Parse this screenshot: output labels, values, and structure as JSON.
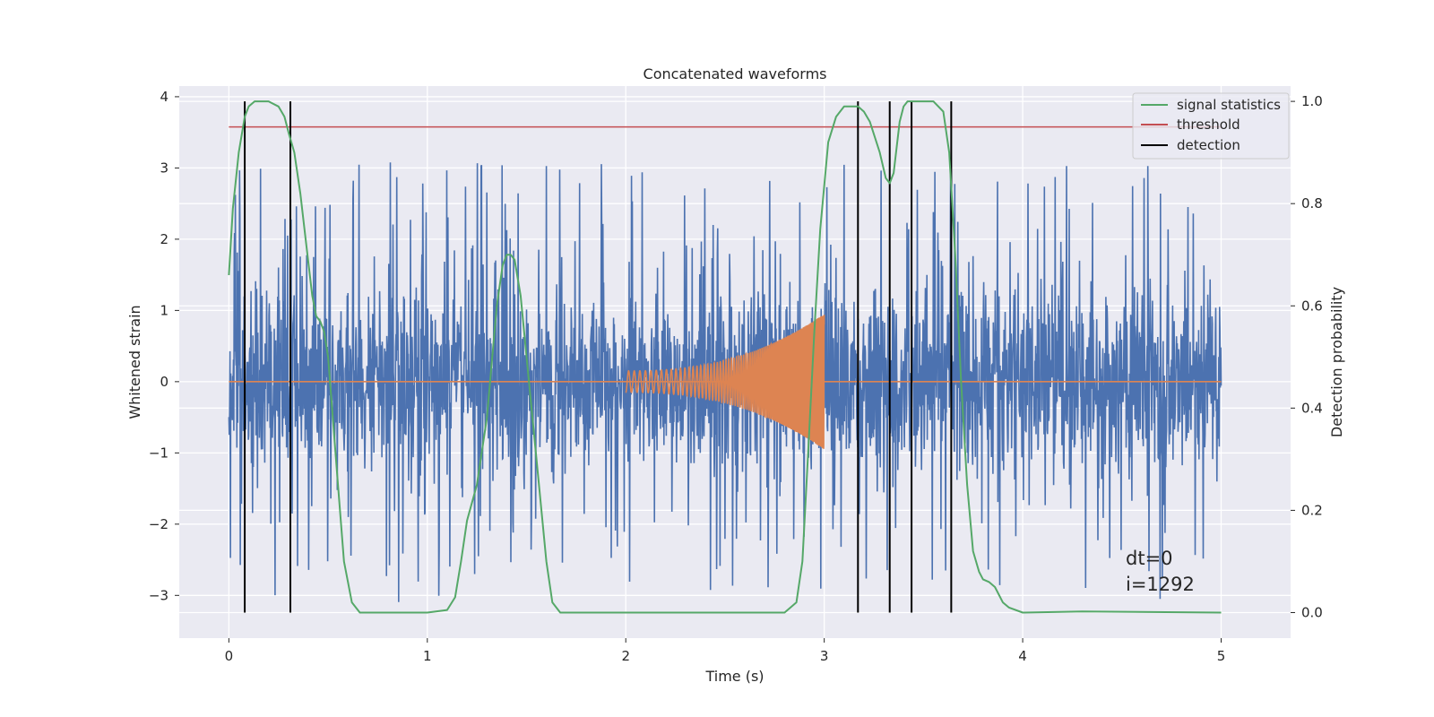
{
  "chart_data": {
    "type": "line",
    "title": "Concatenated waveforms",
    "xlabel": "Time (s)",
    "ylabel": "Whitened strain",
    "y2label": "Detection probability",
    "xlim": [
      -0.25,
      5.35
    ],
    "ylim": [
      -3.6,
      4.15
    ],
    "y2lim": [
      -0.05,
      1.03
    ],
    "x_ticks": [
      0,
      1,
      2,
      3,
      4,
      5
    ],
    "x_tick_labels": [
      "0",
      "1",
      "2",
      "3",
      "4",
      "5"
    ],
    "y_ticks": [
      -3,
      -2,
      -1,
      0,
      1,
      2,
      3,
      4
    ],
    "y_tick_labels": [
      "−3",
      "−2",
      "−1",
      "0",
      "1",
      "2",
      "3",
      "4"
    ],
    "y2_ticks": [
      0.0,
      0.2,
      0.4,
      0.6,
      0.8,
      1.0
    ],
    "y2_tick_labels": [
      "0.0",
      "0.2",
      "0.4",
      "0.6",
      "0.8",
      "1.0"
    ],
    "grid": true,
    "legend_position": "top-right",
    "colors": {
      "background": "#eaeaf2",
      "grid": "#ffffff",
      "strain": "#4c72b0",
      "injected_signal": "#dd8452",
      "signal_statistics": "#55a868",
      "threshold": "#c44e52",
      "detection": "#000000"
    },
    "series": [
      {
        "name": "signal statistics",
        "axis": "right",
        "x": [
          0.0,
          0.02,
          0.05,
          0.08,
          0.1,
          0.13,
          0.16,
          0.2,
          0.25,
          0.28,
          0.3,
          0.33,
          0.36,
          0.39,
          0.42,
          0.44,
          0.46,
          0.48,
          0.5,
          0.52,
          0.55,
          0.58,
          0.62,
          0.66,
          0.7,
          0.8,
          1.0,
          1.1,
          1.14,
          1.17,
          1.2,
          1.25,
          1.3,
          1.35,
          1.38,
          1.4,
          1.42,
          1.44,
          1.47,
          1.5,
          1.55,
          1.6,
          1.63,
          1.67,
          1.72,
          2.0,
          2.5,
          2.8,
          2.86,
          2.89,
          2.92,
          2.95,
          2.98,
          3.02,
          3.06,
          3.1,
          3.14,
          3.17,
          3.2,
          3.23,
          3.28,
          3.31,
          3.33,
          3.35,
          3.38,
          3.4,
          3.42,
          3.44,
          3.47,
          3.5,
          3.55,
          3.6,
          3.63,
          3.66,
          3.69,
          3.72,
          3.75,
          3.78,
          3.8,
          3.83,
          3.86,
          3.88,
          3.9,
          3.93,
          4.0,
          4.3,
          5.0
        ],
        "values": [
          0.66,
          0.79,
          0.9,
          0.97,
          0.99,
          1.0,
          1.0,
          1.0,
          0.99,
          0.97,
          0.94,
          0.9,
          0.82,
          0.72,
          0.62,
          0.58,
          0.57,
          0.55,
          0.5,
          0.4,
          0.25,
          0.1,
          0.02,
          0.0,
          0.0,
          0.0,
          0.0,
          0.005,
          0.03,
          0.1,
          0.18,
          0.25,
          0.38,
          0.6,
          0.68,
          0.7,
          0.7,
          0.69,
          0.62,
          0.5,
          0.3,
          0.1,
          0.02,
          0.0,
          0.0,
          0.0,
          0.0,
          0.0,
          0.02,
          0.1,
          0.32,
          0.55,
          0.75,
          0.92,
          0.97,
          0.99,
          0.99,
          0.99,
          0.98,
          0.96,
          0.9,
          0.85,
          0.84,
          0.86,
          0.96,
          0.99,
          1.0,
          1.0,
          1.0,
          1.0,
          1.0,
          0.98,
          0.9,
          0.7,
          0.45,
          0.25,
          0.12,
          0.08,
          0.065,
          0.06,
          0.05,
          0.035,
          0.02,
          0.01,
          0.0,
          0.002,
          0.0
        ]
      },
      {
        "name": "threshold",
        "axis": "right",
        "x": [
          0.0,
          5.0
        ],
        "values": [
          0.95,
          0.95
        ]
      },
      {
        "name": "detection",
        "axis": "right",
        "x_positions": [
          0.08,
          0.31,
          3.17,
          3.33,
          3.44,
          3.64
        ],
        "span": [
          0.0,
          1.0
        ]
      }
    ],
    "strain": {
      "x_range": [
        0.0,
        5.0
      ],
      "amplitude": 1.3,
      "spike_max": 3.8,
      "spike_min": -3.2
    },
    "injected_signal": {
      "x_range": [
        2.0,
        3.0
      ],
      "start_amplitude": 0.15,
      "end_amplitude": 0.95,
      "start_frequency_hz": 35,
      "end_frequency_hz": 200
    },
    "annotations": [
      "dt=0",
      "i=1292"
    ]
  }
}
